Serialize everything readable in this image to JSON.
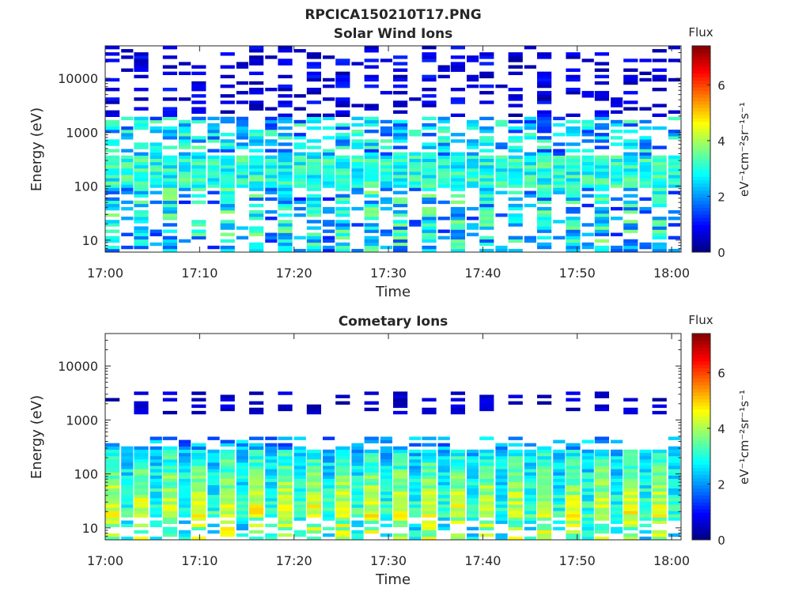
{
  "figure": {
    "title": "RPCICA150210T17.PNG"
  },
  "colorbar": {
    "title": "Flux",
    "label": "eV⁻¹cm⁻²sr⁻¹s⁻¹",
    "range": [
      0,
      7.4
    ],
    "ticks": [
      "0",
      "2",
      "4",
      "6"
    ],
    "colormap": "jet"
  },
  "chart_data": [
    {
      "type": "heatmap",
      "title": "Solar Wind Ions",
      "xlabel": "Time",
      "ylabel": "Energy (eV)",
      "x_ticks": [
        "17:00",
        "17:10",
        "17:20",
        "17:30",
        "17:40",
        "17:50",
        "18:00"
      ],
      "y_ticks": [
        "10",
        "100",
        "1000",
        "10000"
      ],
      "x_range": [
        "17:00",
        "18:01"
      ],
      "y_range": [
        6,
        40000
      ],
      "y_scale": "log",
      "flux_core_energy_eV": [
        90,
        350
      ],
      "flux_core_value": 3.0
    },
    {
      "type": "heatmap",
      "title": "Cometary Ions",
      "xlabel": "Time",
      "ylabel": "Energy (eV)",
      "x_ticks": [
        "17:00",
        "17:10",
        "17:20",
        "17:30",
        "17:40",
        "17:50",
        "18:00"
      ],
      "y_ticks": [
        "10",
        "100",
        "1000",
        "10000"
      ],
      "x_range": [
        "17:00",
        "18:01"
      ],
      "y_range": [
        6,
        40000
      ],
      "y_scale": "log",
      "flux_core_energy_eV": [
        15,
        300
      ],
      "flux_core_value": 4.5
    }
  ]
}
